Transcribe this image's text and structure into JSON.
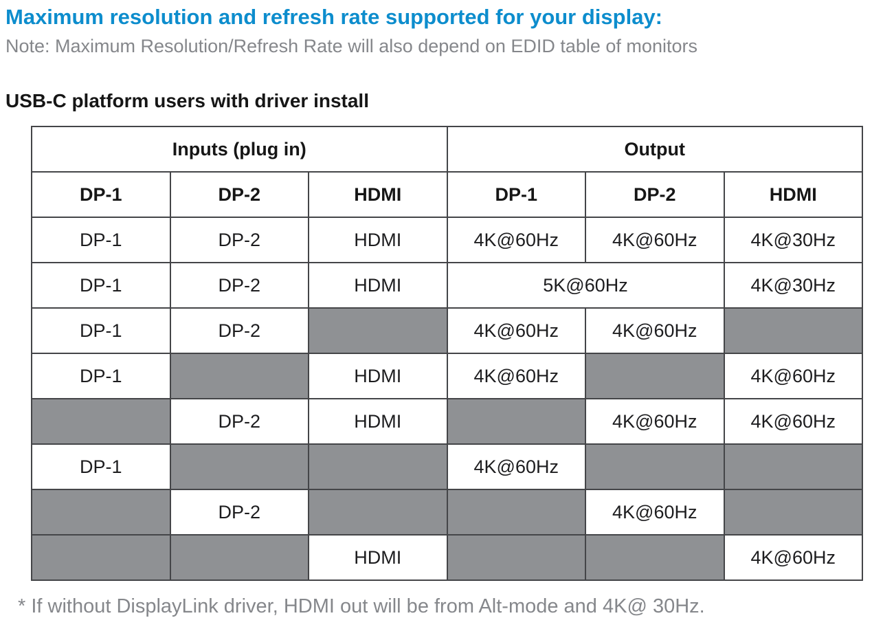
{
  "header": {
    "title": "Maximum resolution and refresh rate supported for your display:",
    "note": "Note: Maximum Resolution/Refresh Rate will also depend on EDID table of monitors",
    "section_heading": "USB-C platform users with driver install"
  },
  "table": {
    "group_headers": [
      {
        "label": "Inputs (plug in)",
        "span": 3
      },
      {
        "label": "Output",
        "span": 3
      }
    ],
    "column_headers": [
      "DP-1",
      "DP-2",
      "HDMI",
      "DP-1",
      "DP-2",
      "HDMI"
    ],
    "rows": [
      {
        "cells": [
          {
            "text": "DP-1"
          },
          {
            "text": "DP-2"
          },
          {
            "text": "HDMI"
          },
          {
            "text": "4K@60Hz"
          },
          {
            "text": "4K@60Hz"
          },
          {
            "text": "4K@30Hz"
          }
        ]
      },
      {
        "cells": [
          {
            "text": "DP-1"
          },
          {
            "text": "DP-2"
          },
          {
            "text": "HDMI"
          },
          {
            "text": "5K@60Hz",
            "span": 2
          },
          {
            "text": "4K@30Hz"
          }
        ]
      },
      {
        "cells": [
          {
            "text": "DP-1"
          },
          {
            "text": "DP-2"
          },
          {
            "gray": true
          },
          {
            "text": "4K@60Hz"
          },
          {
            "text": "4K@60Hz"
          },
          {
            "gray": true
          }
        ]
      },
      {
        "cells": [
          {
            "text": "DP-1"
          },
          {
            "gray": true
          },
          {
            "text": "HDMI"
          },
          {
            "text": "4K@60Hz"
          },
          {
            "gray": true
          },
          {
            "text": "4K@60Hz"
          }
        ]
      },
      {
        "cells": [
          {
            "gray": true
          },
          {
            "text": "DP-2"
          },
          {
            "text": "HDMI"
          },
          {
            "gray": true
          },
          {
            "text": "4K@60Hz"
          },
          {
            "text": "4K@60Hz"
          }
        ]
      },
      {
        "cells": [
          {
            "text": "DP-1"
          },
          {
            "gray": true
          },
          {
            "gray": true
          },
          {
            "text": "4K@60Hz"
          },
          {
            "gray": true
          },
          {
            "gray": true
          }
        ]
      },
      {
        "cells": [
          {
            "gray": true
          },
          {
            "text": "DP-2"
          },
          {
            "gray": true
          },
          {
            "gray": true
          },
          {
            "text": "4K@60Hz"
          },
          {
            "gray": true
          }
        ]
      },
      {
        "cells": [
          {
            "gray": true
          },
          {
            "gray": true
          },
          {
            "text": "HDMI"
          },
          {
            "gray": true
          },
          {
            "gray": true
          },
          {
            "text": "4K@60Hz"
          }
        ]
      }
    ]
  },
  "footnote": "* If without DisplayLink driver, HDMI out will be from Alt-mode and 4K@ 30Hz.",
  "colors": {
    "title_blue": "#0d8dcd",
    "text_gray": "#85878b",
    "cell_gray": "#8f9194",
    "cell_text": "#1d1d1f",
    "border": "#444548"
  }
}
